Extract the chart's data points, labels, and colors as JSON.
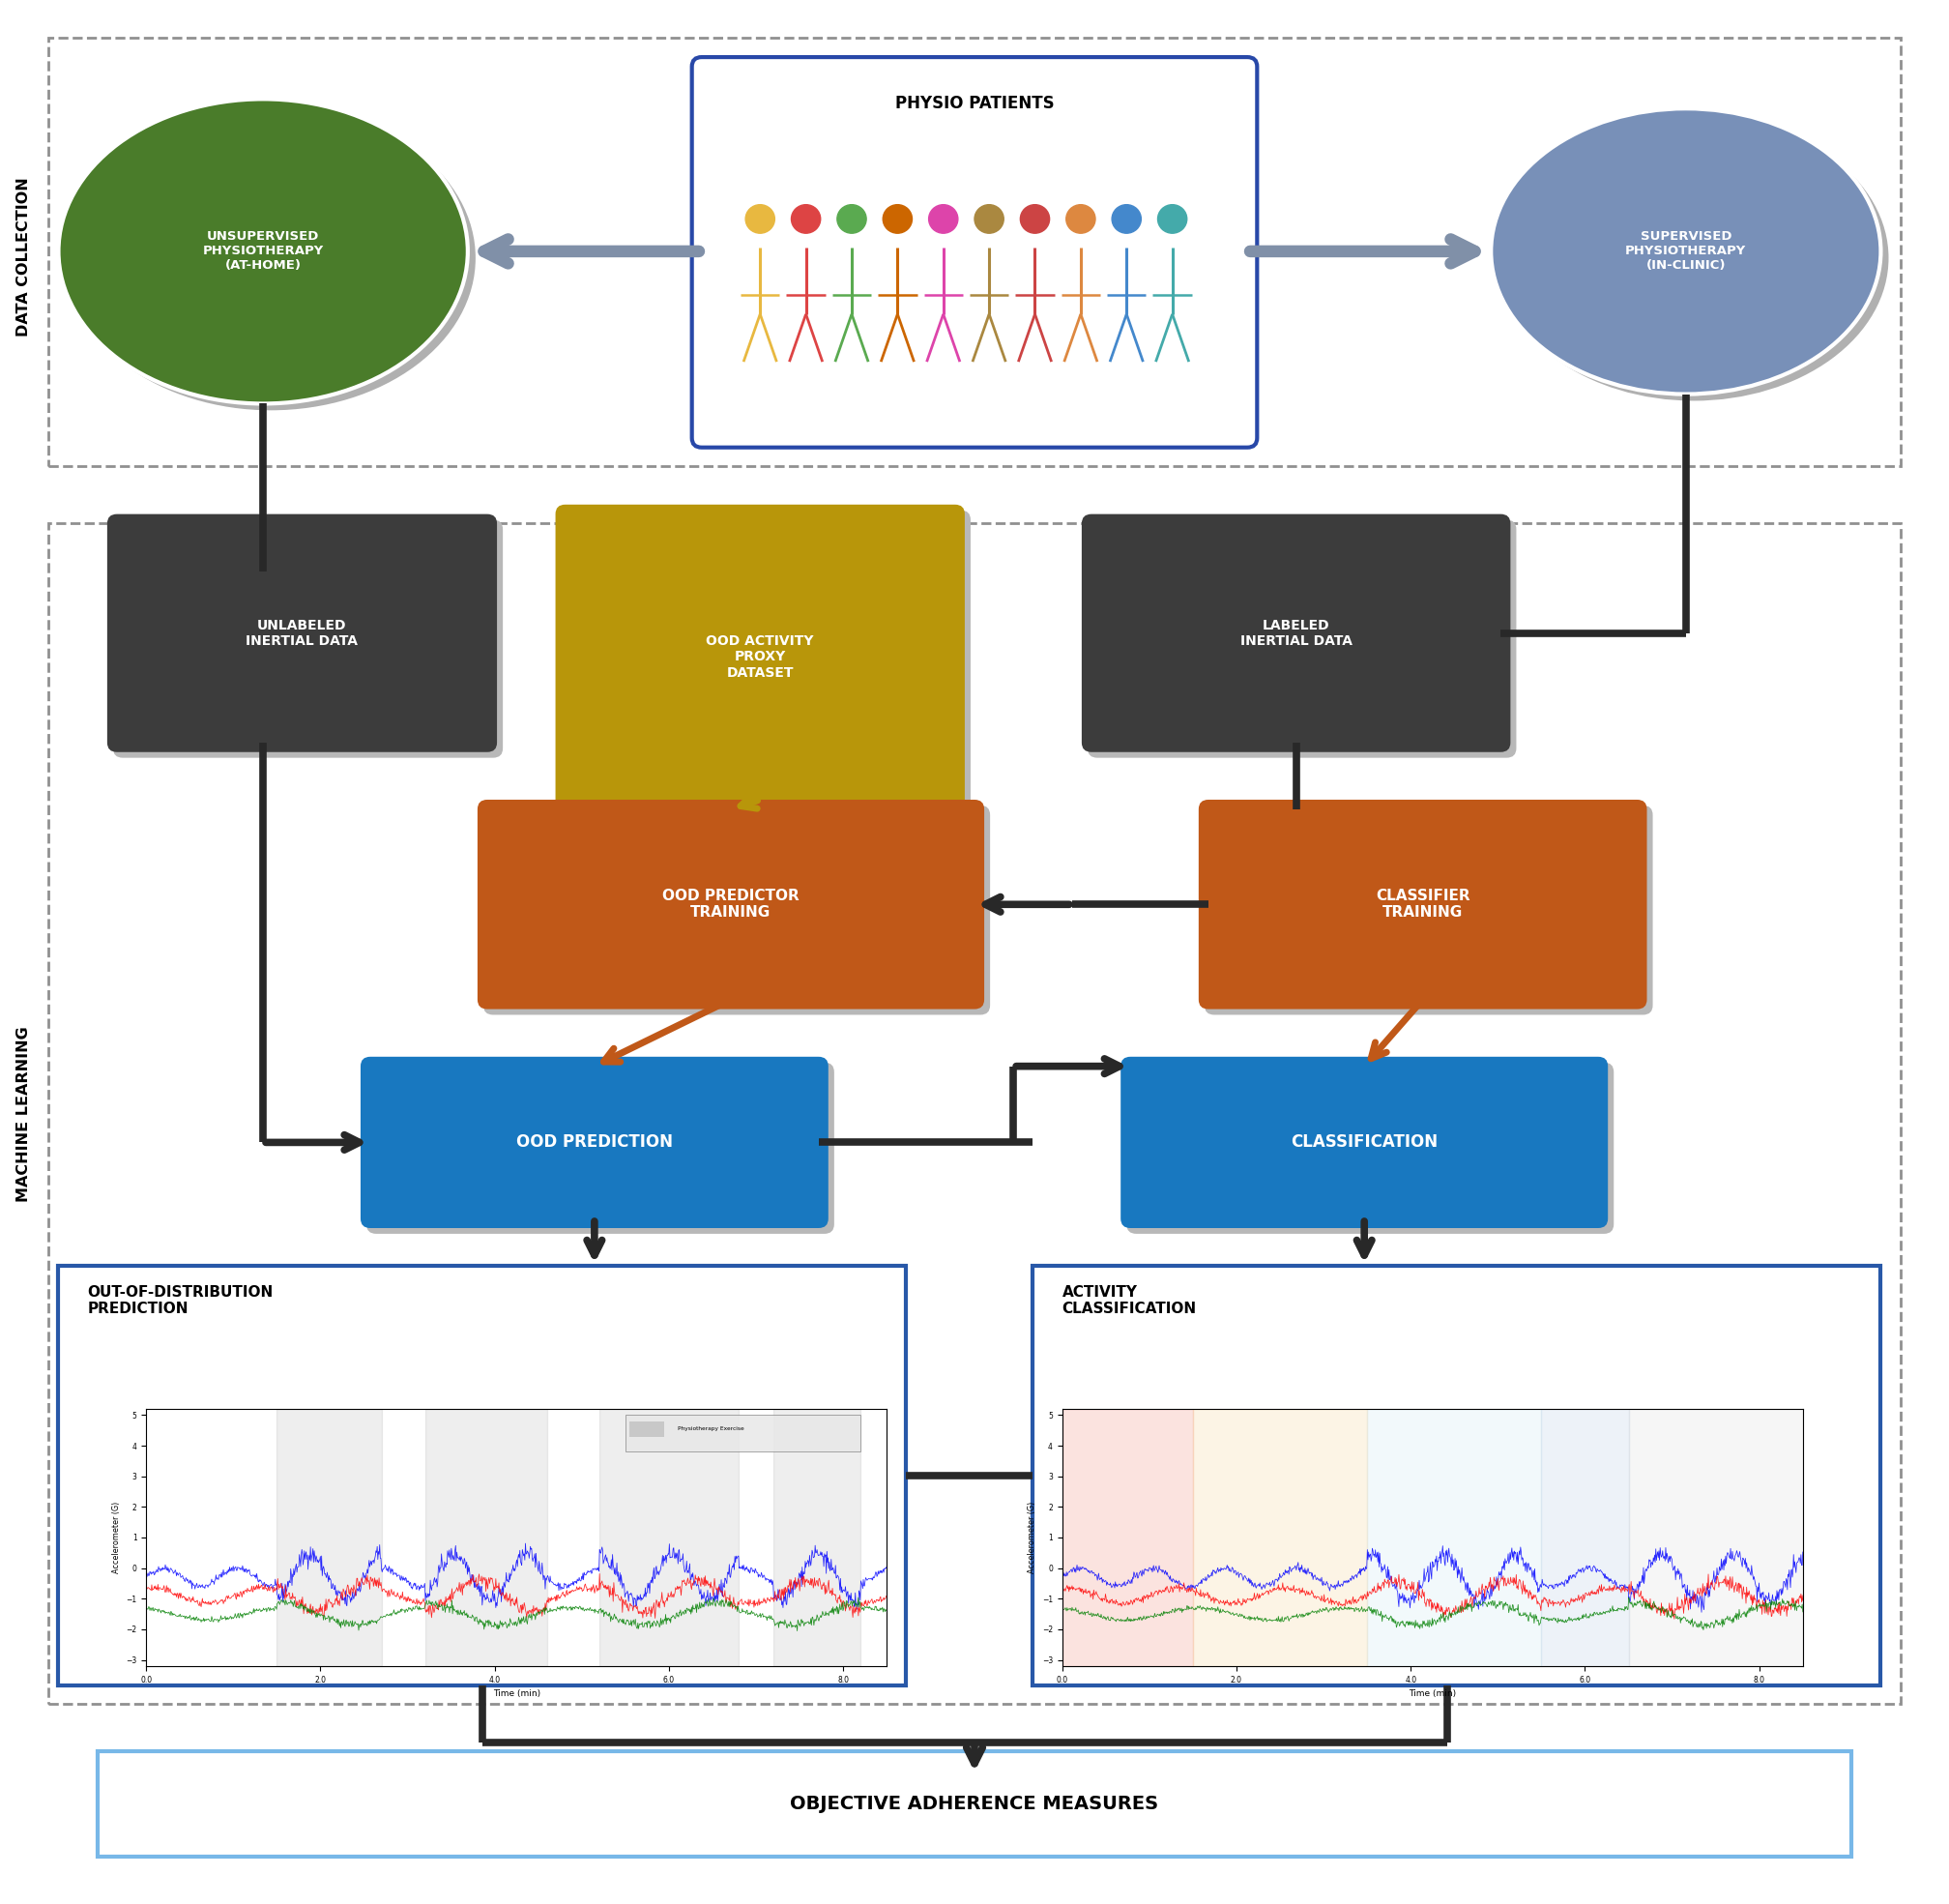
{
  "fig_width": 20.16,
  "fig_height": 19.69,
  "colors": {
    "dark_gray": "#3c3c3c",
    "gold": "#b8960a",
    "orange": "#c05818",
    "blue_box": "#1878c0",
    "green_circle": "#4a7c2a",
    "blue_circle": "#7890b8",
    "arrow_gray": "#8090a8",
    "arrow_dark": "#282828",
    "output_border_blue": "#2858a8",
    "adherence_border": "#78b8e8",
    "white": "#ffffff"
  },
  "texts": {
    "data_collection_label": "DATA COLLECTION",
    "machine_learning_label": "MACHINE LEARNING",
    "unsupervised": "UNSUPERVISED\nPHYSIOTHERAPY\n(AT-HOME)",
    "supervised": "SUPERVISED\nPHYSIOTHERAPY\n(IN-CLINIC)",
    "physio_patients": "PHYSIO PATIENTS",
    "unlabeled": "UNLABELED\nINERTIAL DATA",
    "ood_activity": "OOD ACTIVITY\nPROXY\nDATASET",
    "labeled": "LABELED\nINERTIAL DATA",
    "ood_predictor": "OOD PREDICTOR\nTRAINING",
    "classifier_training": "CLASSIFIER\nTRAINING",
    "ood_prediction": "OOD PREDICTION",
    "classification": "CLASSIFICATION",
    "ood_output_title": "OUT-OF-DISTRIBUTION\nPREDICTION",
    "activity_output_title": "ACTIVITY\nCLASSIFICATION",
    "adherence": "OBJECTIVE ADHERENCE MEASURES"
  },
  "people_colors": [
    "#e8b840",
    "#dd4444",
    "#5aaa50",
    "#cc6600",
    "#dd44aa",
    "#aa8840",
    "#cc4444",
    "#dd8840",
    "#4488cc",
    "#44aaaa"
  ]
}
